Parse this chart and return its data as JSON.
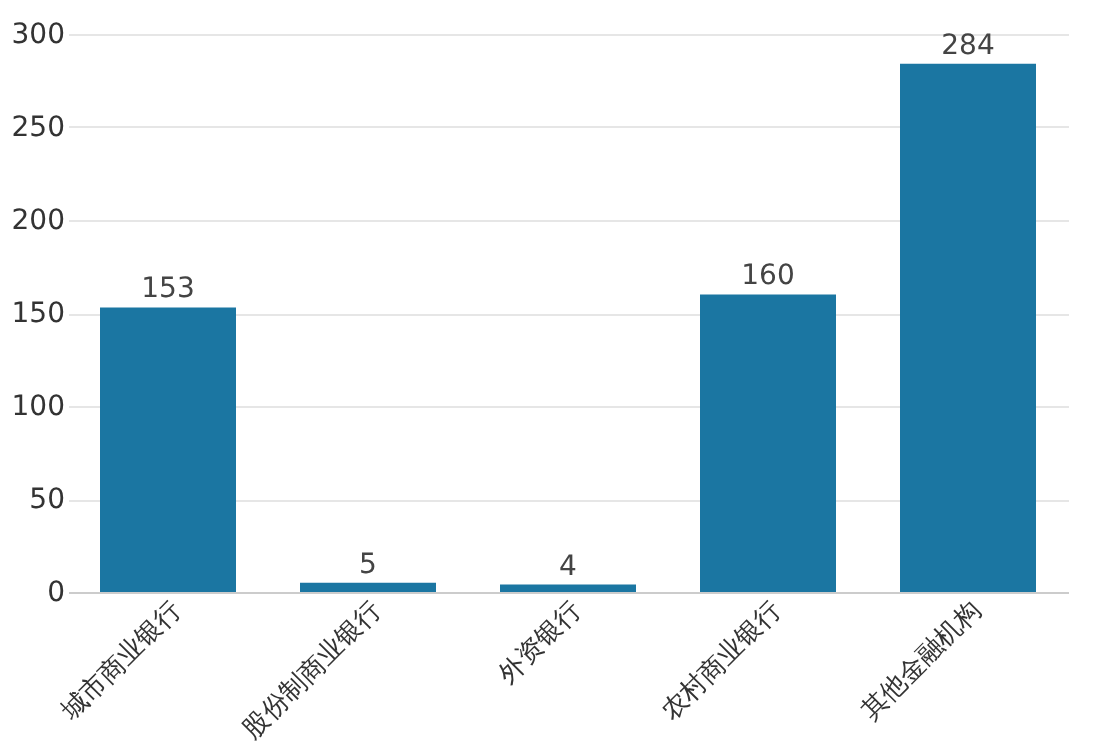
{
  "chart_data": {
    "type": "bar",
    "categories": [
      "城市商业银行",
      "股份制商业银行",
      "外资银行",
      "农村商业银行",
      "其他金融机构"
    ],
    "values": [
      153,
      5,
      4,
      160,
      284
    ],
    "color": "#1b76a2",
    "ylim": [
      0,
      300
    ],
    "yticks": [
      0,
      50,
      100,
      150,
      200,
      250,
      300
    ],
    "grid": "y",
    "data_labels": true
  }
}
